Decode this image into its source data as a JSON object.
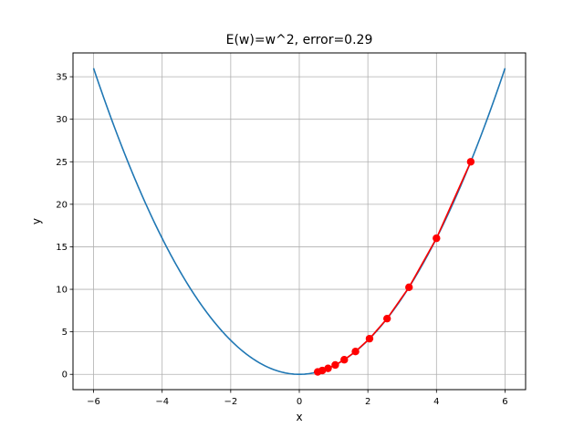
{
  "chart_data": {
    "type": "line",
    "title": "E(w)=w^2, error=0.29",
    "xlabel": "x",
    "ylabel": "y",
    "xlim": [
      -6.6,
      6.6
    ],
    "ylim": [
      -1.8,
      37.8
    ],
    "xticks": [
      -6,
      -4,
      -2,
      0,
      2,
      4,
      6
    ],
    "yticks": [
      0,
      5,
      10,
      15,
      20,
      25,
      30,
      35
    ],
    "xtick_labels": [
      "−6",
      "−4",
      "−2",
      "0",
      "2",
      "4",
      "6"
    ],
    "ytick_labels": [
      "0",
      "5",
      "10",
      "15",
      "20",
      "25",
      "30",
      "35"
    ],
    "grid": true,
    "series": [
      {
        "function": "y = x^2",
        "x_range": [
          -6,
          6
        ],
        "color": "#1f77b4",
        "style": "line"
      },
      {
        "color": "#ff0000",
        "style": "line+markers",
        "x": [
          5.0,
          4.0,
          3.2,
          2.56,
          2.048,
          1.6384,
          1.31072,
          1.048576,
          0.8388608,
          0.67108864,
          0.536870912
        ],
        "y": [
          25.0,
          16.0,
          10.24,
          6.5536,
          4.194304,
          2.68435456,
          1.7179869184,
          1.099511627776,
          0.70368744177664,
          0.450359962737,
          0.288230376152
        ]
      }
    ]
  }
}
